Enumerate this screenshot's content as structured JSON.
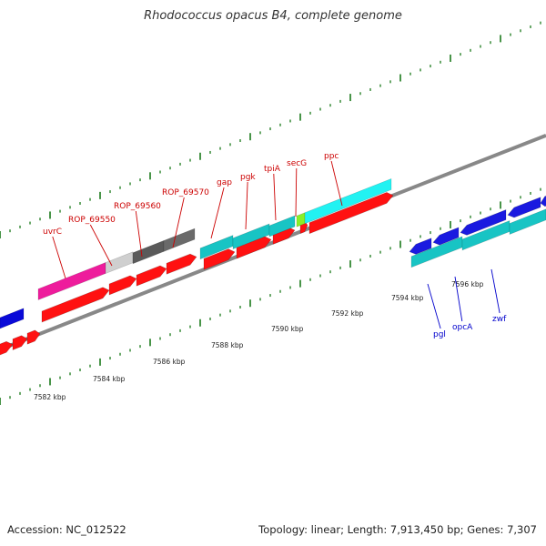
{
  "title": "Rhodococcus opacus B4, complete genome",
  "footer": {
    "accession": "Accession: NC_012522",
    "summary": "Topology: linear; Length: 7,913,450 bp; Genes: 7,307"
  },
  "colors": {
    "forward_label": "#cc0000",
    "reverse_label": "#0000cc",
    "backbone": "#888888",
    "tick": "#1a7a1a"
  },
  "scale": {
    "unit": "kbp",
    "labels": [
      "7582 kbp",
      "7584 kbp",
      "7586 kbp",
      "7588 kbp",
      "7590 kbp",
      "7592 kbp",
      "7594 kbp",
      "7596 kbp"
    ]
  },
  "gene_labels": {
    "forward": [
      "uvrC",
      "ROP_69550",
      "ROP_69560",
      "ROP_69570",
      "gap",
      "pgk",
      "tpiA",
      "secG",
      "ppc"
    ],
    "reverse": [
      "pgl",
      "opcA",
      "zwf"
    ]
  }
}
